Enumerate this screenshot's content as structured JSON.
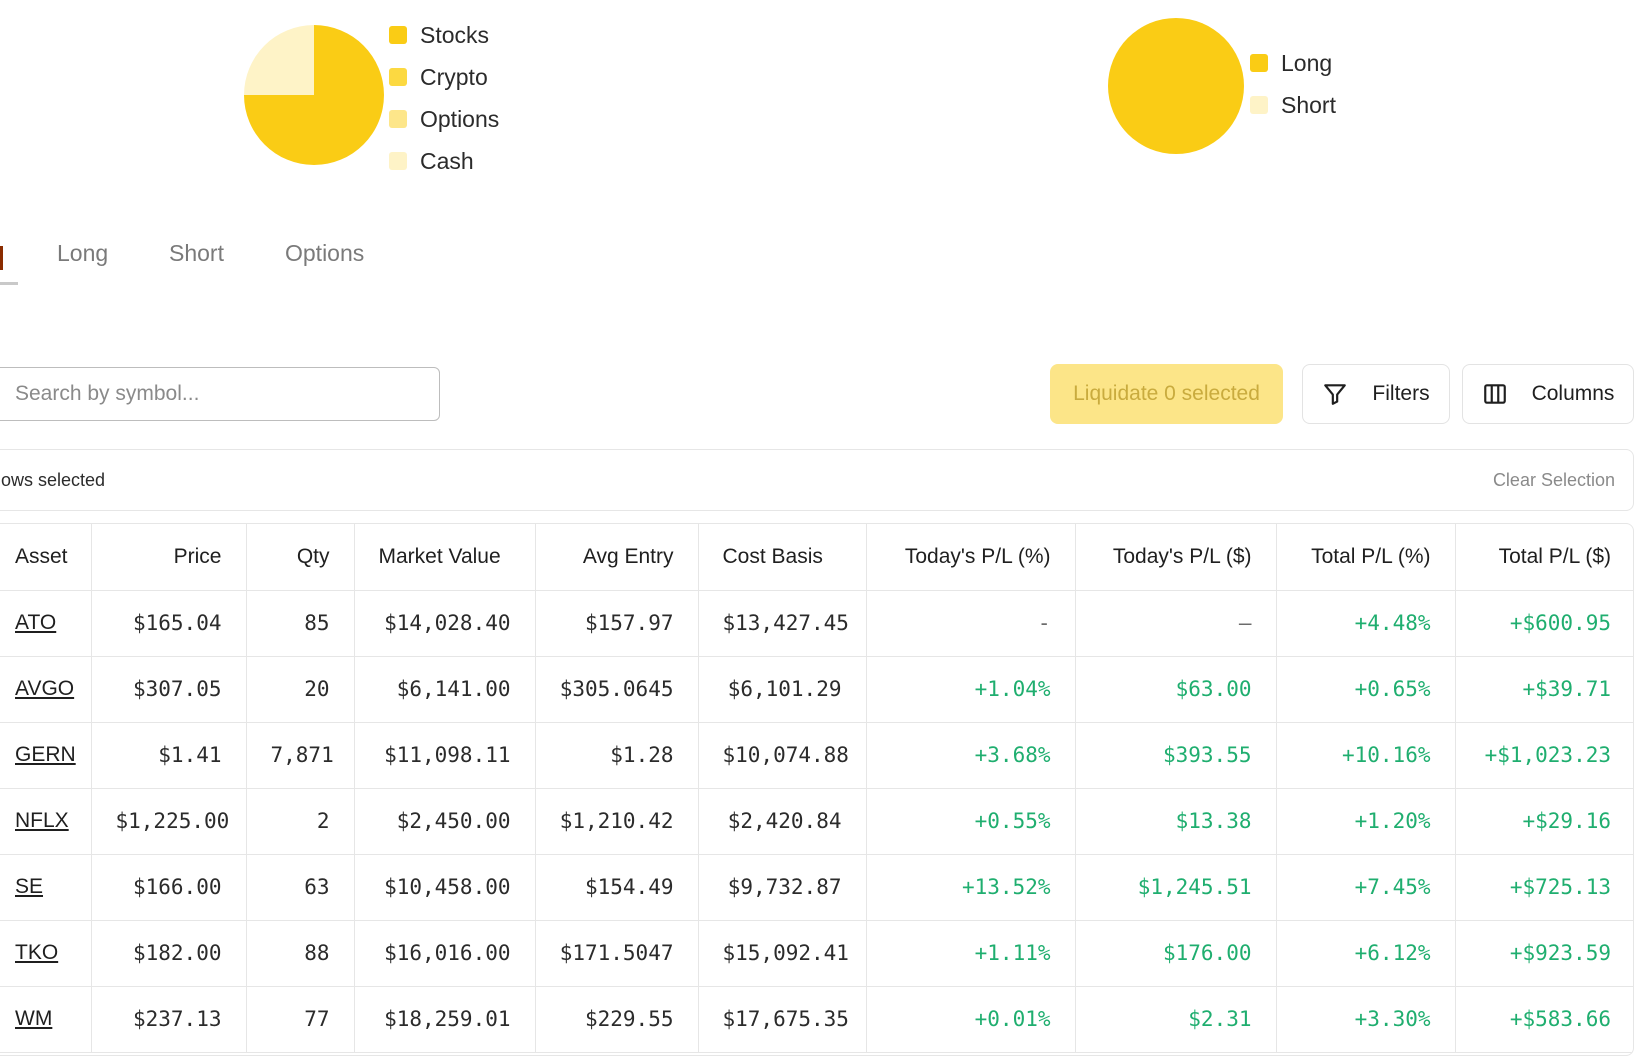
{
  "charts": {
    "allocation": {
      "legend": [
        {
          "label": "Stocks",
          "color": "#facc15"
        },
        {
          "label": "Crypto",
          "color": "#fcd941"
        },
        {
          "label": "Options",
          "color": "#fde68a"
        },
        {
          "label": "Cash",
          "color": "#fef3c7"
        }
      ]
    },
    "side": {
      "legend": [
        {
          "label": "Long",
          "color": "#facc15"
        },
        {
          "label": "Short",
          "color": "#fef3c7"
        }
      ]
    }
  },
  "chart_data": [
    {
      "type": "pie",
      "categories": [
        "Stocks",
        "Crypto",
        "Options",
        "Cash"
      ],
      "values": [
        75,
        0,
        0,
        25
      ],
      "colors": [
        "#facc15",
        "#fcd941",
        "#fde68a",
        "#fef3c7"
      ],
      "title": ""
    },
    {
      "type": "pie",
      "categories": [
        "Long",
        "Short"
      ],
      "values": [
        100,
        0
      ],
      "colors": [
        "#facc15",
        "#fef3c7"
      ],
      "title": ""
    }
  ],
  "tabs": {
    "items": [
      "Long",
      "Short",
      "Options"
    ]
  },
  "toolbar": {
    "search_placeholder": "Search by symbol...",
    "liquidate_label": "Liquidate 0 selected",
    "filters_label": "Filters",
    "columns_label": "Columns"
  },
  "selection": {
    "text": "ows selected",
    "clear_label": "Clear Selection"
  },
  "table": {
    "columns": [
      "Asset",
      "Price",
      "Qty",
      "Market Value",
      "Avg Entry",
      "Cost Basis",
      "Today's P/L (%)",
      "Today's P/L ($)",
      "Total P/L (%)",
      "Total P/L ($)"
    ],
    "rows": [
      [
        "ATO",
        "$165.04",
        "85",
        "$14,028.40",
        "$157.97",
        "$13,427.45",
        "-",
        "–",
        "+4.48%",
        "+$600.95"
      ],
      [
        "AVGO",
        "$307.05",
        "20",
        "$6,141.00",
        "$305.0645",
        "$6,101.29",
        "+1.04%",
        "$63.00",
        "+0.65%",
        "+$39.71"
      ],
      [
        "GERN",
        "$1.41",
        "7,871",
        "$11,098.11",
        "$1.28",
        "$10,074.88",
        "+3.68%",
        "$393.55",
        "+10.16%",
        "+$1,023.23"
      ],
      [
        "NFLX",
        "$1,225.00",
        "2",
        "$2,450.00",
        "$1,210.42",
        "$2,420.84",
        "+0.55%",
        "$13.38",
        "+1.20%",
        "+$29.16"
      ],
      [
        "SE",
        "$166.00",
        "63",
        "$10,458.00",
        "$154.49",
        "$9,732.87",
        "+13.52%",
        "$1,245.51",
        "+7.45%",
        "+$725.13"
      ],
      [
        "TKO",
        "$182.00",
        "88",
        "$16,016.00",
        "$171.5047",
        "$15,092.41",
        "+1.11%",
        "$176.00",
        "+6.12%",
        "+$923.59"
      ],
      [
        "WM",
        "$237.13",
        "77",
        "$18,259.01",
        "$229.55",
        "$17,675.35",
        "+0.01%",
        "$2.31",
        "+3.30%",
        "+$583.66"
      ]
    ]
  }
}
